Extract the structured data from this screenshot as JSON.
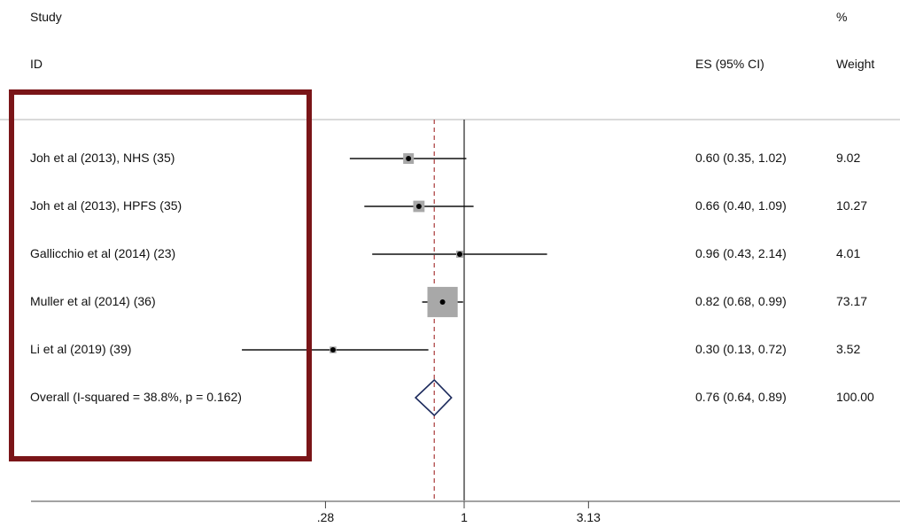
{
  "header": {
    "study": "Study",
    "id": "ID",
    "percent": "%",
    "es_ci": "ES (95% CI)",
    "weight": "Weight"
  },
  "chart_data": {
    "type": "forest",
    "x_scale": "log",
    "null_line": 1,
    "overall_es": 0.76,
    "x_ticks": [
      {
        "value": 0.28,
        "label": ".28"
      },
      {
        "value": 1,
        "label": "1"
      },
      {
        "value": 3.13,
        "label": "3.13"
      }
    ],
    "studies": [
      {
        "label": "Joh et al (2013), NHS (35)",
        "es": 0.6,
        "lower": 0.35,
        "upper": 1.02,
        "es_text": "0.60 (0.35, 1.02)",
        "weight": 9.02,
        "weight_text": "9.02"
      },
      {
        "label": "Joh et al (2013), HPFS (35)",
        "es": 0.66,
        "lower": 0.4,
        "upper": 1.09,
        "es_text": "0.66 (0.40, 1.09)",
        "weight": 10.27,
        "weight_text": "10.27"
      },
      {
        "label": "Gallicchio et al (2014) (23)",
        "es": 0.96,
        "lower": 0.43,
        "upper": 2.14,
        "es_text": "0.96 (0.43, 2.14)",
        "weight": 4.01,
        "weight_text": "4.01"
      },
      {
        "label": "Muller et al (2014) (36)",
        "es": 0.82,
        "lower": 0.68,
        "upper": 0.99,
        "es_text": "0.82 (0.68, 0.99)",
        "weight": 73.17,
        "weight_text": "73.17"
      },
      {
        "label": "Li et al (2019) (39)",
        "es": 0.3,
        "lower": 0.13,
        "upper": 0.72,
        "es_text": "0.30 (0.13, 0.72)",
        "weight": 3.52,
        "weight_text": "3.52"
      }
    ],
    "overall": {
      "label": "Overall  (I-squared = 38.8%, p = 0.162)",
      "es": 0.76,
      "lower": 0.64,
      "upper": 0.89,
      "es_text": "0.76 (0.64, 0.89)",
      "weight_text": "100.00"
    }
  },
  "colors": {
    "highlight_box": "#7a1518",
    "overall_line": "#b04848",
    "weight_box": "#a8a8a8",
    "diamond": "#1c2a5c"
  }
}
